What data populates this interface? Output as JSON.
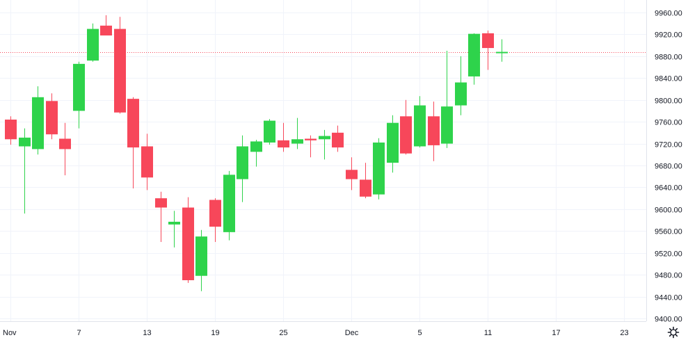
{
  "chart_data": {
    "type": "candlestick",
    "y_axis": {
      "position": "right",
      "ylim": [
        9390,
        9975
      ],
      "ticks": [
        "9400.00",
        "9440.00",
        "9480.00",
        "9520.00",
        "9560.00",
        "9600.00",
        "9640.00",
        "9680.00",
        "9720.00",
        "9760.00",
        "9800.00",
        "9840.00",
        "9880.00",
        "9920.00",
        "9960.00"
      ]
    },
    "x_axis": {
      "ticks": [
        {
          "label": "Nov",
          "bar": 0
        },
        {
          "label": "7",
          "bar": 5
        },
        {
          "label": "13",
          "bar": 10
        },
        {
          "label": "19",
          "bar": 15
        },
        {
          "label": "25",
          "bar": 20
        },
        {
          "label": "Dec",
          "bar": 25
        },
        {
          "label": "5",
          "bar": 30
        },
        {
          "label": "11",
          "bar": 35
        },
        {
          "label": "17",
          "bar": 40
        },
        {
          "label": "23",
          "bar": 45
        }
      ]
    },
    "price_line": 9888,
    "grid": true,
    "colors": {
      "up": "#2ed34b",
      "down": "#f7475a",
      "grid": "#f0f3fa",
      "price_line": "#f7475a",
      "text": "#131722"
    },
    "candles": [
      {
        "o": 9764,
        "h": 9770,
        "l": 9718,
        "c": 9728
      },
      {
        "o": 9715,
        "h": 9748,
        "l": 9592,
        "c": 9731
      },
      {
        "o": 9710,
        "h": 9825,
        "l": 9700,
        "c": 9805
      },
      {
        "o": 9798,
        "h": 9812,
        "l": 9728,
        "c": 9737
      },
      {
        "o": 9729,
        "h": 9758,
        "l": 9662,
        "c": 9710
      },
      {
        "o": 9780,
        "h": 9870,
        "l": 9748,
        "c": 9866
      },
      {
        "o": 9872,
        "h": 9940,
        "l": 9870,
        "c": 9930
      },
      {
        "o": 9936,
        "h": 9955,
        "l": 9918,
        "c": 9918
      },
      {
        "o": 9930,
        "h": 9952,
        "l": 9775,
        "c": 9777
      },
      {
        "o": 9802,
        "h": 9805,
        "l": 9638,
        "c": 9713
      },
      {
        "o": 9715,
        "h": 9738,
        "l": 9635,
        "c": 9658
      },
      {
        "o": 9620,
        "h": 9632,
        "l": 9540,
        "c": 9603
      },
      {
        "o": 9572,
        "h": 9597,
        "l": 9530,
        "c": 9577
      },
      {
        "o": 9603,
        "h": 9622,
        "l": 9465,
        "c": 9470
      },
      {
        "o": 9478,
        "h": 9562,
        "l": 9450,
        "c": 9550
      },
      {
        "o": 9617,
        "h": 9620,
        "l": 9540,
        "c": 9568
      },
      {
        "o": 9558,
        "h": 9670,
        "l": 9543,
        "c": 9663
      },
      {
        "o": 9655,
        "h": 9735,
        "l": 9613,
        "c": 9715
      },
      {
        "o": 9705,
        "h": 9727,
        "l": 9678,
        "c": 9724
      },
      {
        "o": 9722,
        "h": 9765,
        "l": 9718,
        "c": 9762
      },
      {
        "o": 9726,
        "h": 9758,
        "l": 9705,
        "c": 9713
      },
      {
        "o": 9720,
        "h": 9767,
        "l": 9710,
        "c": 9728
      },
      {
        "o": 9729,
        "h": 9735,
        "l": 9695,
        "c": 9726
      },
      {
        "o": 9728,
        "h": 9745,
        "l": 9691,
        "c": 9734
      },
      {
        "o": 9740,
        "h": 9753,
        "l": 9705,
        "c": 9713
      },
      {
        "o": 9672,
        "h": 9695,
        "l": 9635,
        "c": 9655
      },
      {
        "o": 9654,
        "h": 9685,
        "l": 9620,
        "c": 9623
      },
      {
        "o": 9627,
        "h": 9730,
        "l": 9618,
        "c": 9722
      },
      {
        "o": 9685,
        "h": 9772,
        "l": 9667,
        "c": 9758
      },
      {
        "o": 9770,
        "h": 9800,
        "l": 9700,
        "c": 9702
      },
      {
        "o": 9715,
        "h": 9807,
        "l": 9713,
        "c": 9790
      },
      {
        "o": 9770,
        "h": 9797,
        "l": 9688,
        "c": 9717
      },
      {
        "o": 9720,
        "h": 9890,
        "l": 9712,
        "c": 9788
      },
      {
        "o": 9790,
        "h": 9880,
        "l": 9772,
        "c": 9832
      },
      {
        "o": 9843,
        "h": 9922,
        "l": 9828,
        "c": 9921
      },
      {
        "o": 9922,
        "h": 9927,
        "l": 9855,
        "c": 9895
      },
      {
        "o": 9888,
        "h": 9911,
        "l": 9870,
        "c": 9888
      }
    ]
  }
}
